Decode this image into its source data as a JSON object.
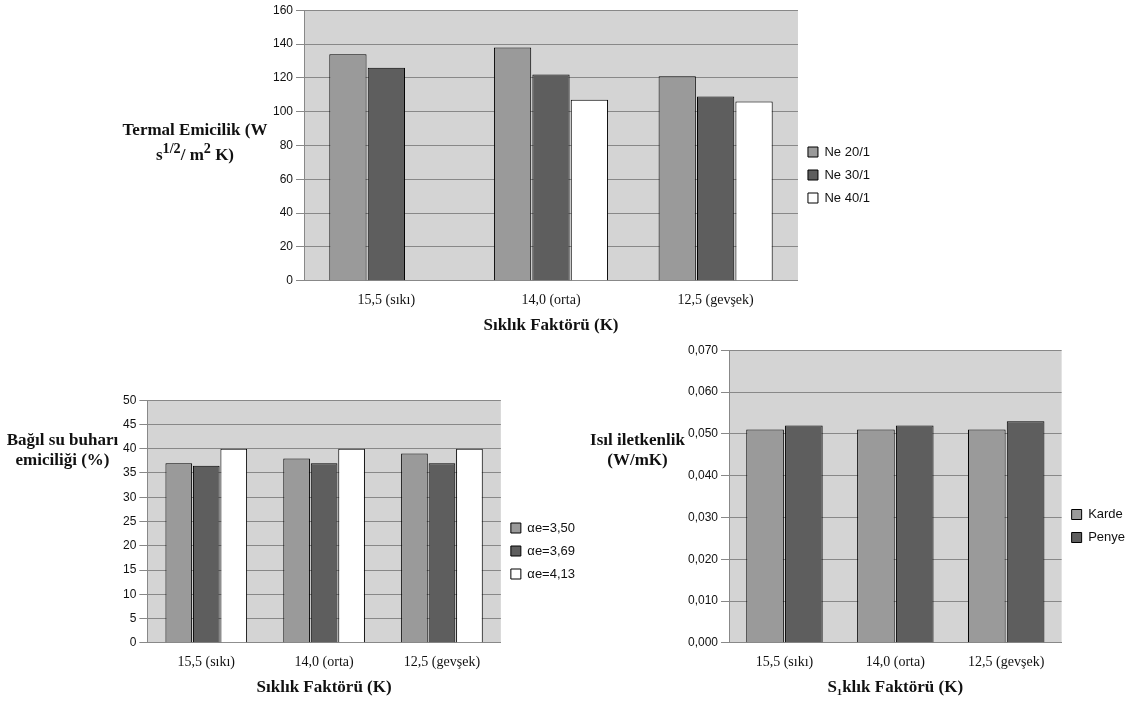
{
  "chart_data": [
    {
      "type": "bar",
      "xlabel": "Sıklık Faktörü (K)",
      "ylabel": "Termal Emicilik (W s$^{1/2}$/ m$^{2}$ K)",
      "categories": [
        "15,5 (sıkı)",
        "14,0 (orta)",
        "12,5 (gevşek)"
      ],
      "series": [
        {
          "name": "Ne 20/1",
          "color": "#9a9a9a",
          "values": [
            134,
            138,
            121
          ]
        },
        {
          "name": "Ne 30/1",
          "color": "#5e5e5e",
          "values": [
            126,
            122,
            109
          ]
        },
        {
          "name": "Ne 40/1",
          "color": "#ffffff",
          "values": [
            null,
            107,
            106
          ]
        }
      ],
      "ylim": [
        0,
        160
      ],
      "yticks": [
        0,
        20,
        40,
        60,
        80,
        100,
        120,
        140,
        160
      ],
      "grid": "y",
      "legend": "right"
    },
    {
      "type": "bar",
      "xlabel": "Sıklık Faktörü (K)",
      "ylabel": "Bağıl su buharı emiciliği (%)",
      "categories": [
        "15,5 (sıkı)",
        "14,0 (orta)",
        "12,5 (gevşek)"
      ],
      "series": [
        {
          "name": "αe=3,50",
          "color": "#9a9a9a",
          "values": [
            37,
            38,
            39
          ]
        },
        {
          "name": "αe=3,69",
          "color": "#5e5e5e",
          "values": [
            36.5,
            37,
            37
          ]
        },
        {
          "name": "αe=4,13",
          "color": "#ffffff",
          "values": [
            40,
            40,
            40
          ]
        }
      ],
      "ylim": [
        0,
        50
      ],
      "yticks": [
        0,
        5,
        10,
        15,
        20,
        25,
        30,
        35,
        40,
        45,
        50
      ],
      "grid": "y",
      "legend": "right"
    },
    {
      "type": "bar",
      "xlabel": "S₁klık Faktörü (K)",
      "ylabel": "Isıl iletkenlik (W/mK)",
      "categories": [
        "15,5 (sıkı)",
        "14,0 (orta)",
        "12,5 (gevşek)"
      ],
      "series": [
        {
          "name": "Karde",
          "color": "#9a9a9a",
          "values": [
            0.051,
            0.051,
            0.051
          ]
        },
        {
          "name": "Penye",
          "color": "#5e5e5e",
          "values": [
            0.052,
            0.052,
            0.053
          ]
        }
      ],
      "ylim": [
        0,
        0.07
      ],
      "yticks": [
        {
          "value": 0,
          "label": "0,000"
        },
        {
          "value": 0.01,
          "label": "0,010"
        },
        {
          "value": 0.02,
          "label": "0,020"
        },
        {
          "value": 0.03,
          "label": "0,030"
        },
        {
          "value": 0.04,
          "label": "0,040"
        },
        {
          "value": 0.05,
          "label": "0,050"
        },
        {
          "value": 0.06,
          "label": "0,060"
        },
        {
          "value": 0.07,
          "label": "0,070"
        }
      ],
      "grid": "y",
      "legend": "right"
    }
  ]
}
